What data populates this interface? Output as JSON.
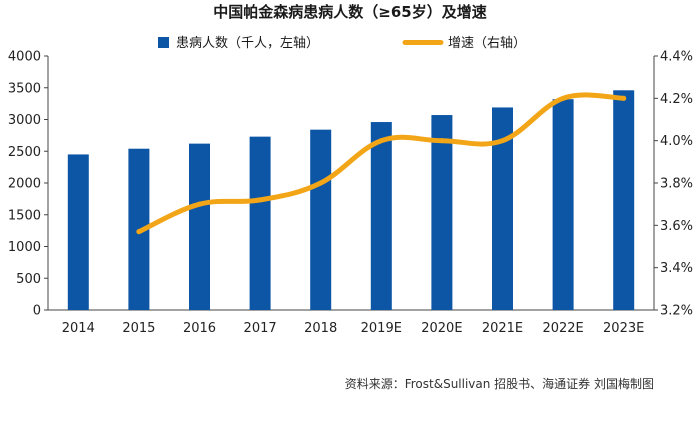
{
  "chart_data": {
    "type": "bar+line",
    "title": "中国帕金森病患病人数（≥65岁）及增速",
    "categories": [
      "2014",
      "2015",
      "2016",
      "2017",
      "2018",
      "2019E",
      "2020E",
      "2021E",
      "2022E",
      "2023E"
    ],
    "series": [
      {
        "name": "患病人数（千人，左轴）",
        "type": "bar",
        "axis": "left",
        "color": "#0d56a6",
        "values": [
          2450,
          2540,
          2620,
          2730,
          2840,
          2960,
          3070,
          3190,
          3320,
          3460
        ]
      },
      {
        "name": "增速（右轴）",
        "type": "line",
        "axis": "right",
        "color": "#f2a516",
        "values": [
          null,
          3.57,
          3.7,
          3.72,
          3.8,
          4.0,
          4.0,
          4.0,
          4.2,
          4.2
        ]
      }
    ],
    "y_left": {
      "min": 0,
      "max": 4000,
      "ticks": [
        "0",
        "500",
        "1000",
        "1500",
        "2000",
        "2500",
        "3000",
        "3500",
        "4000"
      ]
    },
    "y_right": {
      "min": 3.2,
      "max": 4.4,
      "ticks": [
        "3.2%",
        "3.4%",
        "3.6%",
        "3.8%",
        "4.0%",
        "4.2%",
        "4.4%"
      ]
    },
    "legend": [
      "患病人数（千人，左轴）",
      "增速（右轴）"
    ],
    "source": "资料来源：Frost&Sullivan 招股书、海通证券  刘国梅制图"
  }
}
